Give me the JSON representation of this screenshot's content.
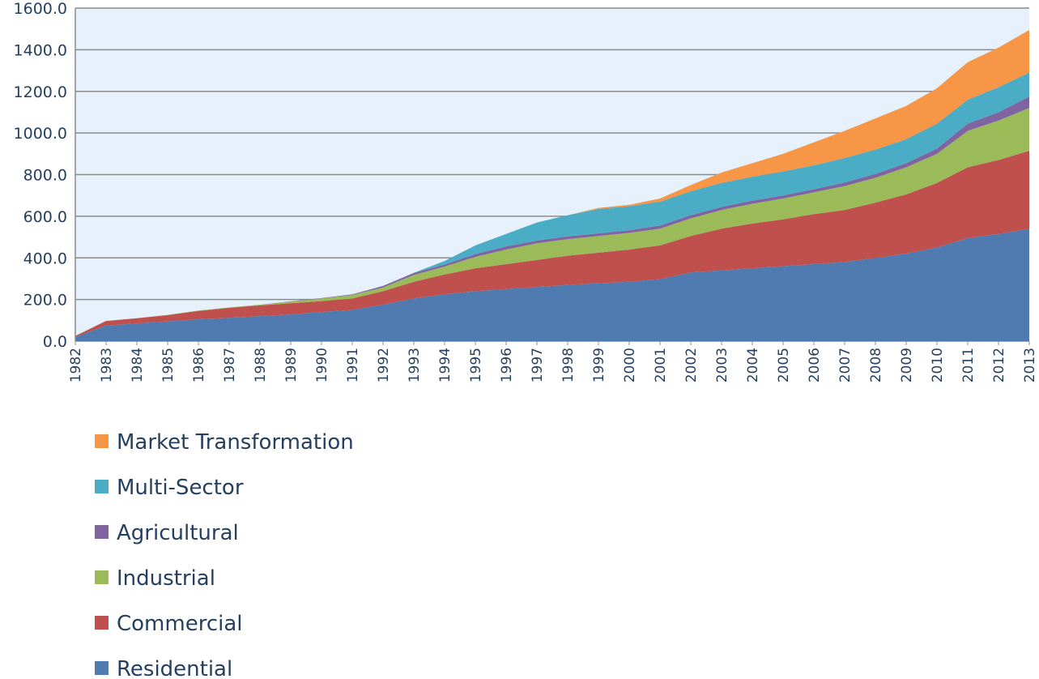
{
  "chart_data": {
    "type": "stacked-area",
    "categories": [
      "1982",
      "1983",
      "1984",
      "1985",
      "1986",
      "1987",
      "1988",
      "1989",
      "1990",
      "1991",
      "1992",
      "1993",
      "1994",
      "1995",
      "1996",
      "1997",
      "1998",
      "1999",
      "2000",
      "2001",
      "2002",
      "2003",
      "2004",
      "2005",
      "2006",
      "2007",
      "2008",
      "2009",
      "2010",
      "2011",
      "2012",
      "2013"
    ],
    "series": [
      {
        "name": "Residential",
        "color": "#4f7bb0",
        "values": [
          20,
          75,
          85,
          95,
          105,
          112,
          120,
          128,
          140,
          150,
          175,
          205,
          225,
          240,
          250,
          260,
          270,
          278,
          285,
          298,
          330,
          340,
          350,
          360,
          370,
          380,
          400,
          420,
          450,
          495,
          515,
          540
        ]
      },
      {
        "name": "Commercial",
        "color": "#c0504d",
        "values": [
          5,
          22,
          25,
          30,
          40,
          48,
          52,
          54,
          52,
          55,
          65,
          80,
          95,
          110,
          120,
          130,
          140,
          147,
          155,
          162,
          175,
          200,
          215,
          225,
          240,
          250,
          265,
          285,
          310,
          340,
          355,
          375
        ]
      },
      {
        "name": "Industrial",
        "color": "#9bbb59",
        "values": [
          0,
          0,
          0,
          1,
          2,
          2,
          3,
          8,
          13,
          17,
          18,
          33,
          38,
          55,
          70,
          80,
          80,
          80,
          80,
          80,
          85,
          90,
          95,
          100,
          105,
          115,
          120,
          130,
          140,
          175,
          190,
          205
        ]
      },
      {
        "name": "Agricultural",
        "color": "#8064a2",
        "values": [
          0,
          0,
          0,
          0,
          0,
          0,
          0,
          1,
          2,
          3,
          7,
          10,
          10,
          13,
          15,
          13,
          13,
          13,
          13,
          15,
          15,
          15,
          15,
          15,
          15,
          17,
          18,
          20,
          25,
          35,
          40,
          55
        ]
      },
      {
        "name": "Multi-Sector",
        "color": "#4bacc6",
        "values": [
          0,
          0,
          0,
          0,
          0,
          0,
          0,
          0,
          0,
          0,
          0,
          0,
          17,
          42,
          60,
          87,
          102,
          117,
          115,
          115,
          115,
          115,
          115,
          115,
          115,
          118,
          117,
          115,
          120,
          115,
          120,
          115
        ]
      },
      {
        "name": "Market Transformation",
        "color": "#f79646",
        "values": [
          0,
          0,
          0,
          0,
          0,
          0,
          0,
          0,
          0,
          0,
          0,
          0,
          0,
          0,
          0,
          0,
          0,
          5,
          7,
          15,
          30,
          50,
          65,
          85,
          110,
          130,
          150,
          160,
          170,
          180,
          190,
          205
        ]
      }
    ],
    "ylim": [
      0,
      1600
    ],
    "yticks": [
      {
        "value": 0,
        "label": "0.0"
      },
      {
        "value": 200,
        "label": "200.0"
      },
      {
        "value": 400,
        "label": "400.0"
      },
      {
        "value": 600,
        "label": "600.0"
      },
      {
        "value": 800,
        "label": "800.0"
      },
      {
        "value": 1000,
        "label": "1000.0"
      },
      {
        "value": 1200,
        "label": "1200.0"
      },
      {
        "value": 1400,
        "label": "1400.0"
      },
      {
        "value": 1600,
        "label": "1600.0"
      }
    ],
    "grid": true
  }
}
